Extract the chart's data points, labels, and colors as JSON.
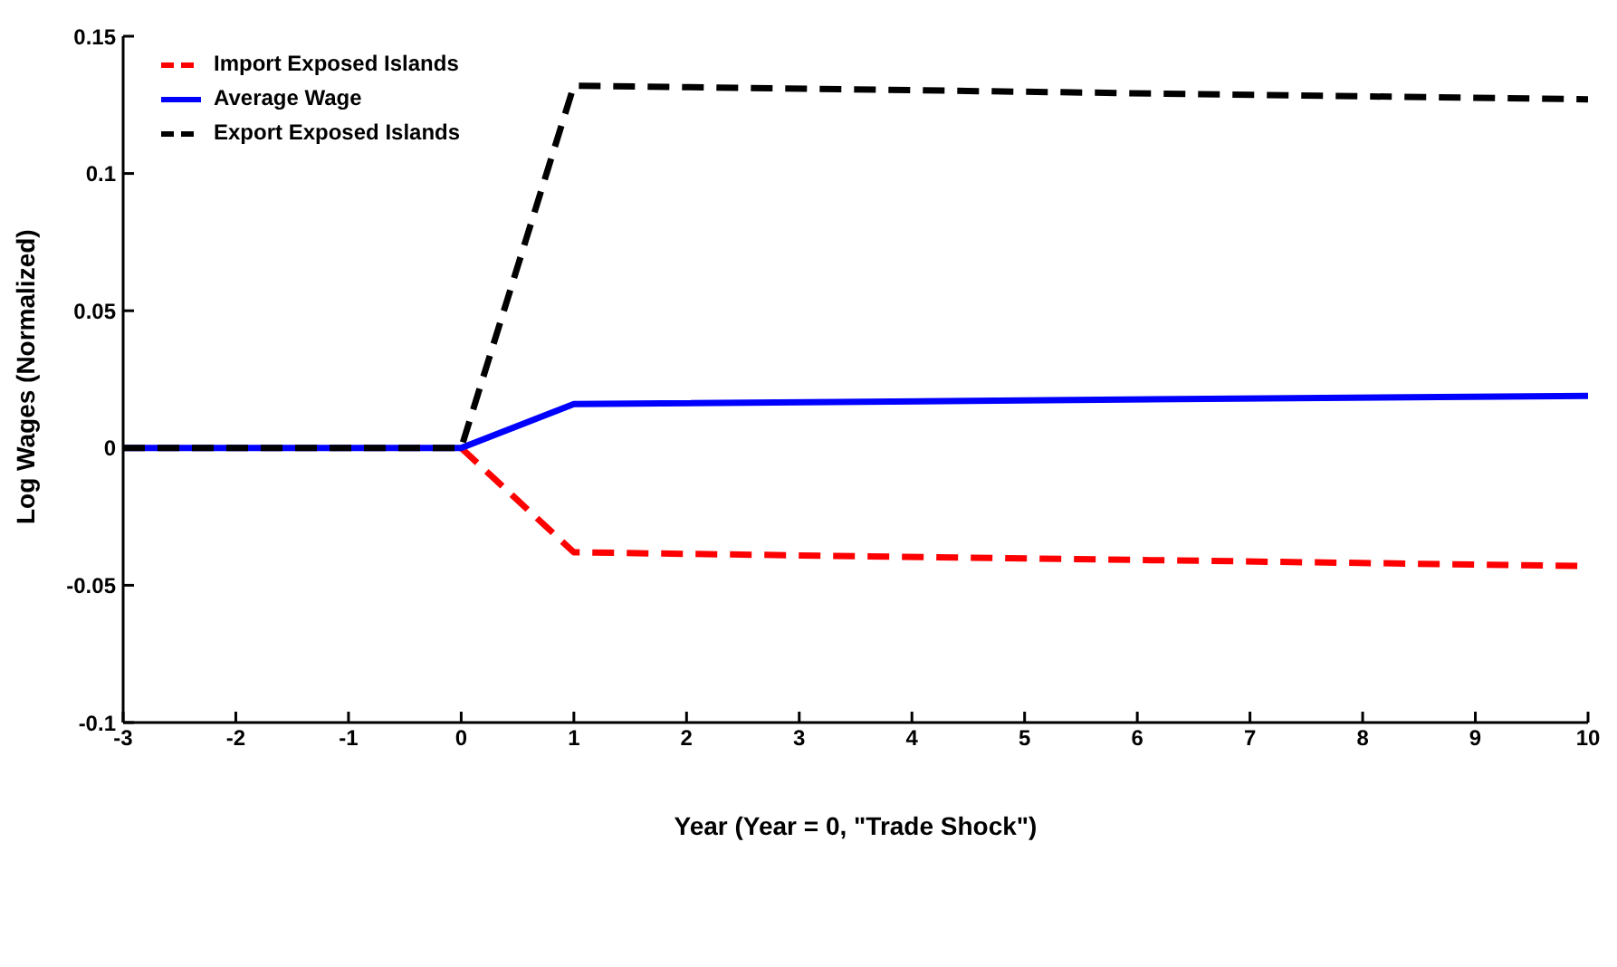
{
  "chart_data": {
    "type": "line",
    "xlabel": "Year  (Year = 0, \"Trade Shock\")",
    "ylabel": "Log Wages (Normalized)",
    "x": [
      -3,
      -2,
      -1,
      0,
      1,
      10
    ],
    "series": [
      {
        "name": "Import Exposed Islands",
        "color": "#ff0000",
        "line_style": "dashed",
        "values": [
          null,
          null,
          null,
          0,
          -0.038,
          -0.043
        ]
      },
      {
        "name": "Average Wage",
        "color": "#0000ff",
        "line_style": "solid",
        "values": [
          0,
          0,
          0,
          0,
          0.016,
          0.019
        ]
      },
      {
        "name": "Export Exposed Islands",
        "color": "#000000",
        "line_style": "dashed",
        "values": [
          0,
          0,
          0,
          0,
          0.132,
          0.127
        ]
      }
    ],
    "xlim": [
      -3,
      10
    ],
    "xticks": [
      -3,
      -2,
      -1,
      0,
      1,
      2,
      3,
      4,
      5,
      6,
      7,
      8,
      9,
      10
    ],
    "ylim": [
      -0.1,
      0.15
    ],
    "yticks": [
      -0.1,
      -0.05,
      0,
      0.05,
      0.1,
      0.15
    ],
    "grid": false,
    "legend": "top left",
    "marker": "none"
  }
}
